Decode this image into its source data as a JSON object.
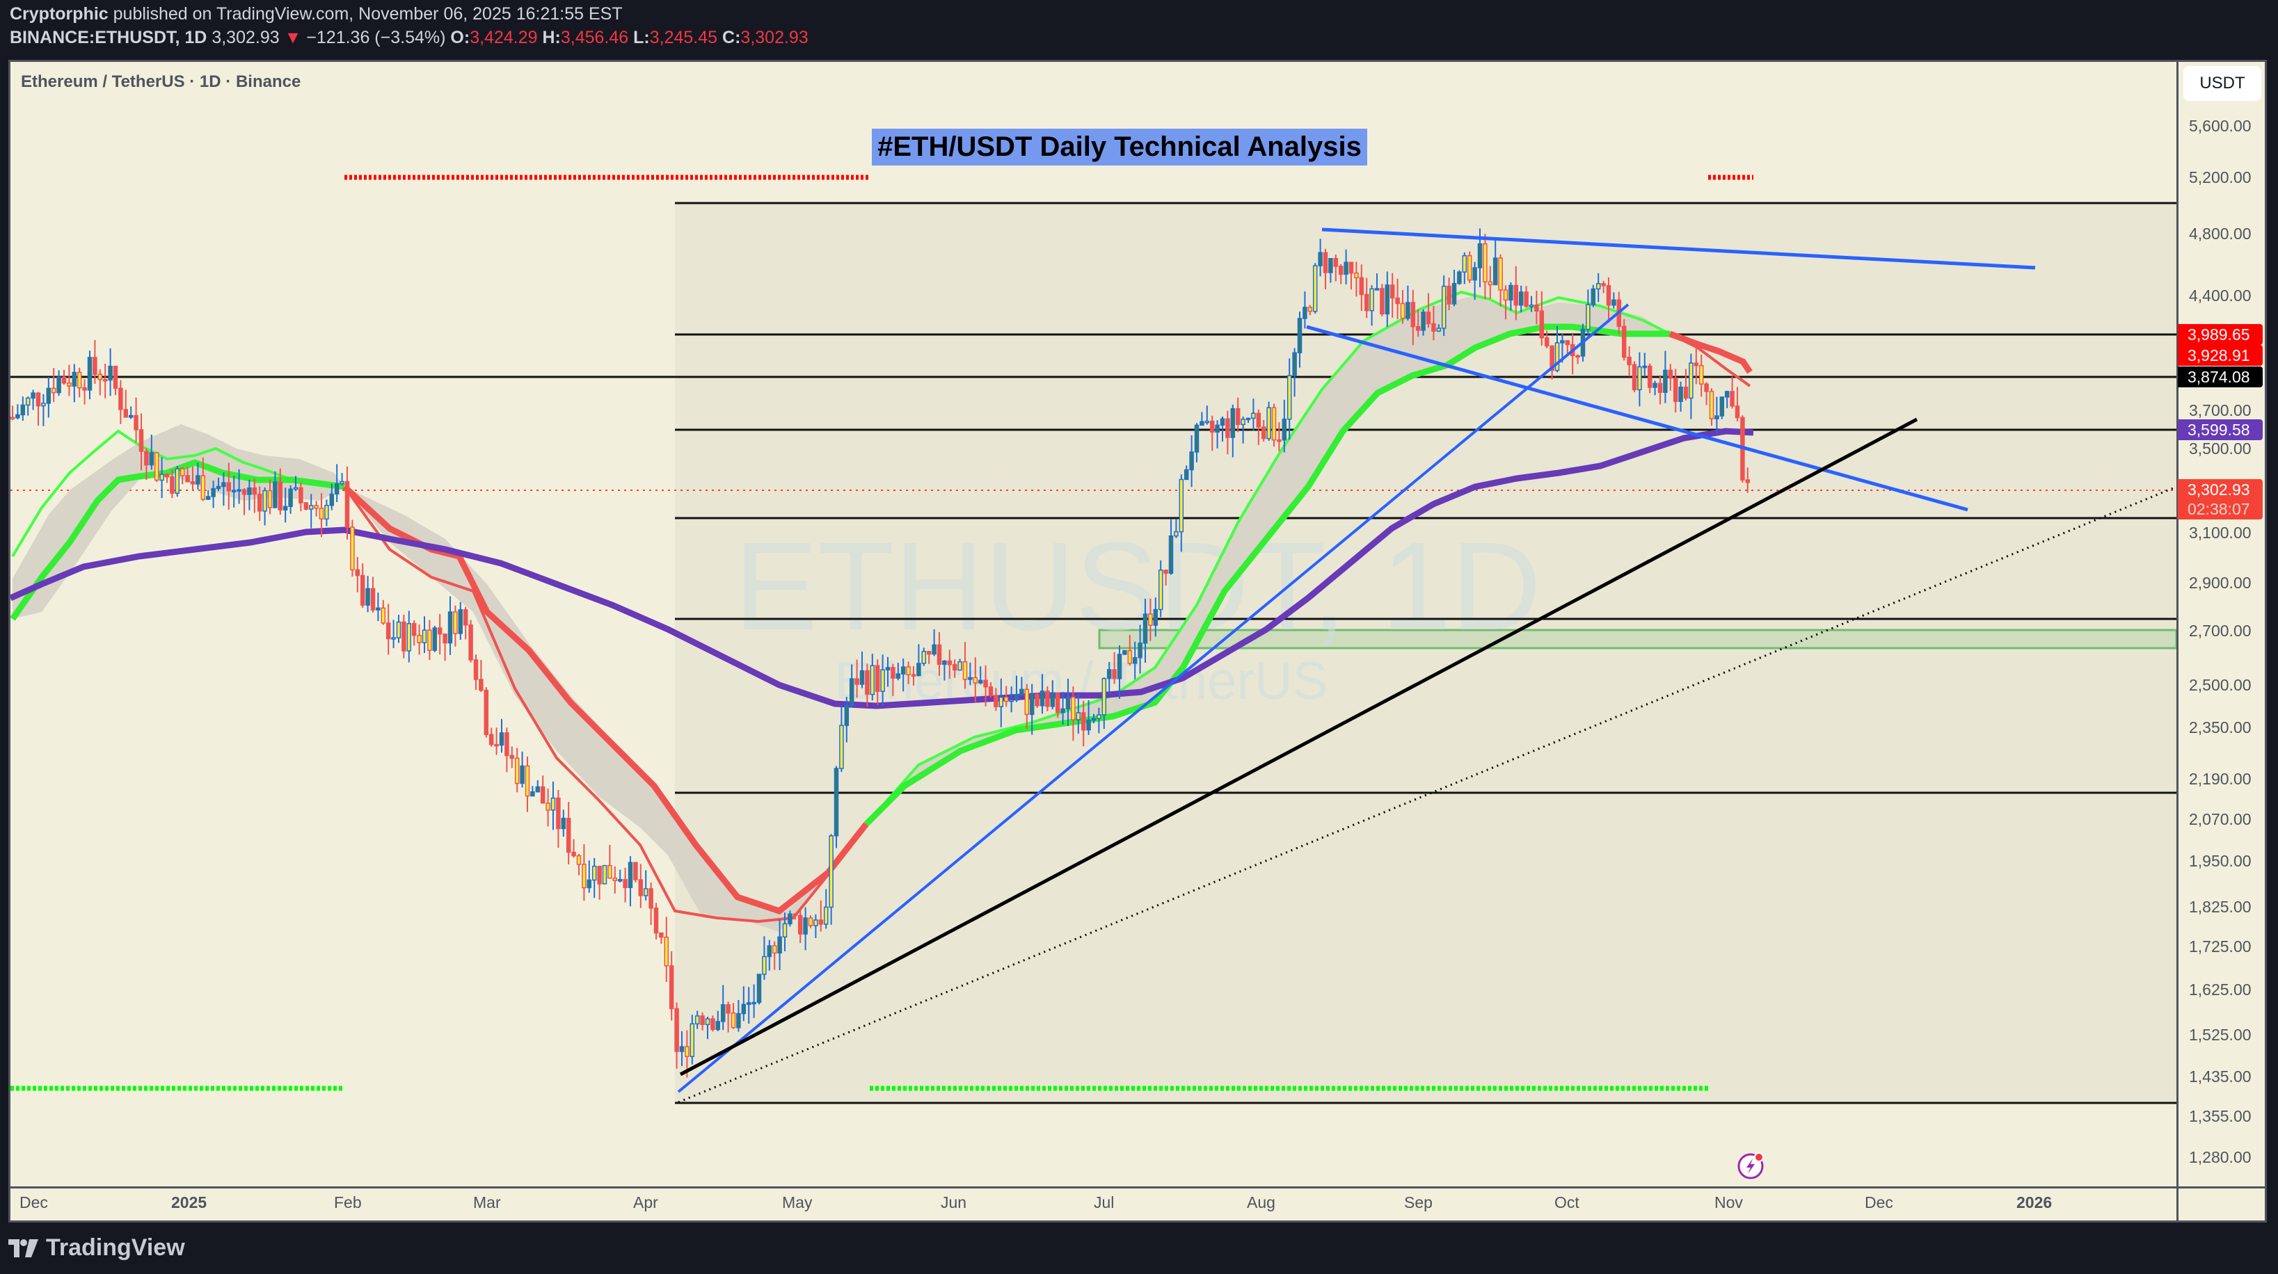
{
  "header": {
    "author": "Cryptorphic",
    "published_text": "published on TradingView.com, November 06, 2025 16:21:55 EST",
    "symbol": "BINANCE:ETHUSDT, 1D",
    "last_price": "3,302.93",
    "change_arrow": "▼",
    "change": "−121.36 (−3.54%)",
    "ohlc": {
      "o_label": "O:",
      "o": "3,424.29",
      "h_label": "H:",
      "h": "3,456.46",
      "l_label": "L:",
      "l": "3,245.45",
      "c_label": "C:",
      "c": "3,302.93"
    }
  },
  "pane": {
    "title": "Ethereum / TetherUS · 1D · Binance",
    "banner": "#ETH/USDT Daily Technical Analysis",
    "watermark_main": "ETHUSDT, 1D",
    "watermark_sub": "Ethereum / TetherUS",
    "currency_button": "USDT"
  },
  "price_axis": {
    "ticks": [
      "5,600.00",
      "5,200.00",
      "4,800.00",
      "4,400.00",
      "3,700.00",
      "3,500.00",
      "3,100.00",
      "2,900.00",
      "2,700.00",
      "2,500.00",
      "2,350.00",
      "2,190.00",
      "2,070.00",
      "1,950.00",
      "1,825.00",
      "1,725.00",
      "1,625.00",
      "1,525.00",
      "1,435.00",
      "1,355.00",
      "1,280.00"
    ],
    "labels": [
      {
        "value": "3,989.65",
        "color": "#ff0000"
      },
      {
        "value": "3,928.91",
        "color": "#ff0000"
      },
      {
        "value": "3,874.08",
        "color": "#000000"
      },
      {
        "value": "3,599.58",
        "color": "#673ab7"
      },
      {
        "value": "3,302.93",
        "color": "#f44336"
      },
      {
        "value": "02:38:07",
        "color": "#f44336"
      }
    ]
  },
  "time_axis": {
    "labels": [
      "Dec",
      "2025",
      "Feb",
      "Mar",
      "Apr",
      "May",
      "Jun",
      "Jul",
      "Aug",
      "Sep",
      "Oct",
      "Nov",
      "Dec",
      "2026"
    ]
  },
  "footer": {
    "brand": "TradingView"
  },
  "colors": {
    "background": "#f2f0dc",
    "frame": "#151821",
    "up_candle": "#1e6fd9",
    "down_candle": "#ef5350",
    "ema_fast_bull": "#33ff33",
    "ema_fast_bear": "#f44336",
    "ma_long": "#673ab7",
    "trendline_blue": "#2962ff",
    "support_zone": "#a5d6a7",
    "banner_bg": "#7499ef"
  },
  "chart_data": {
    "type": "candlestick",
    "title": "#ETH/USDT Daily Technical Analysis",
    "symbol": "ETHUSDT",
    "exchange": "Binance",
    "timeframe": "1D",
    "xlabel": "",
    "ylabel": "USDT",
    "y_scale": "log",
    "ylim": [
      1230,
      5800
    ],
    "x_range": [
      "2024-11-28",
      "2026-01-25"
    ],
    "x_ticks": [
      "Dec",
      "2025",
      "Feb",
      "Mar",
      "Apr",
      "May",
      "Jun",
      "Jul",
      "Aug",
      "Sep",
      "Oct",
      "Nov",
      "Dec",
      "2026"
    ],
    "y_ticks": [
      5600,
      5200,
      4800,
      4400,
      3700,
      3500,
      3100,
      2900,
      2700,
      2500,
      2350,
      2190,
      2070,
      1950,
      1825,
      1725,
      1625,
      1525,
      1435,
      1355,
      1280
    ],
    "last": {
      "open": 3424.29,
      "high": 3456.46,
      "low": 3245.45,
      "close": 3302.93,
      "change": -121.36,
      "change_pct": -3.54,
      "countdown": "02:38:07"
    },
    "approx_closes_monthly": [
      {
        "month": "2024-12",
        "close": 3330
      },
      {
        "month": "2025-01",
        "close": 3300
      },
      {
        "month": "2025-02",
        "close": 2240
      },
      {
        "month": "2025-03",
        "close": 1825
      },
      {
        "month": "2025-04",
        "close": 1795
      },
      {
        "month": "2025-05",
        "close": 2530
      },
      {
        "month": "2025-06",
        "close": 2490
      },
      {
        "month": "2025-07",
        "close": 3700
      },
      {
        "month": "2025-08",
        "close": 4390
      },
      {
        "month": "2025-09",
        "close": 4150
      },
      {
        "month": "2025-10",
        "close": 3850
      },
      {
        "month": "2025-11",
        "close": 3303
      }
    ],
    "key_points": [
      {
        "label": "Dec 2024 high",
        "price": 4100
      },
      {
        "label": "Apr 2025 low",
        "price": 1385
      },
      {
        "label": "Aug 2025 high",
        "price": 4950
      }
    ],
    "horizontal_levels": [
      4956,
      3989.65,
      3874.08,
      3599.58,
      3150,
      2750,
      2150,
      1385
    ],
    "price_line_labels": [
      3989.65,
      3928.91,
      3874.08,
      3599.58,
      3302.93
    ],
    "indicators": [
      {
        "name": "EMA ribbon (fast)",
        "color": "green/red",
        "note": "green when bullish, red when bearish"
      },
      {
        "name": "Long MA",
        "color": "#673ab7",
        "last": 3599.58
      }
    ],
    "drawings": [
      {
        "type": "trendline",
        "color": "blue",
        "desc": "descending resistance from Aug high ~4780 to ~4520"
      },
      {
        "type": "trendline",
        "color": "blue",
        "desc": "descending channel line from ~4250 (Aug) to ~3220 (Dec)"
      },
      {
        "type": "trendline",
        "color": "blue",
        "desc": "ascending line from Apr low to Oct ~4250"
      },
      {
        "type": "trendline",
        "color": "black",
        "desc": "ascending support from ~1420 (Apr) to ~3650 (Dec)"
      },
      {
        "type": "trendline",
        "color": "black-dotted",
        "desc": "ascending from ~1385 (Apr) to ~3303 (Jan 2026)"
      },
      {
        "type": "zone",
        "color": "green",
        "range": [
          2640,
          2720
        ]
      },
      {
        "type": "box",
        "desc": "shaded range box Apr 2025 onward, 1385–4956"
      }
    ],
    "signals": [
      {
        "type": "sell-markers",
        "color": "red",
        "ranges": [
          [
            "2025-01-21",
            "2025-05-13"
          ],
          [
            "2025-10-30",
            "2025-11-06"
          ]
        ]
      },
      {
        "type": "buy-markers",
        "color": "green",
        "ranges": [
          [
            "2024-12-01",
            "2025-01-19"
          ],
          [
            "2025-05-14",
            "2025-10-27"
          ]
        ]
      }
    ],
    "grid": false,
    "legend": null
  }
}
